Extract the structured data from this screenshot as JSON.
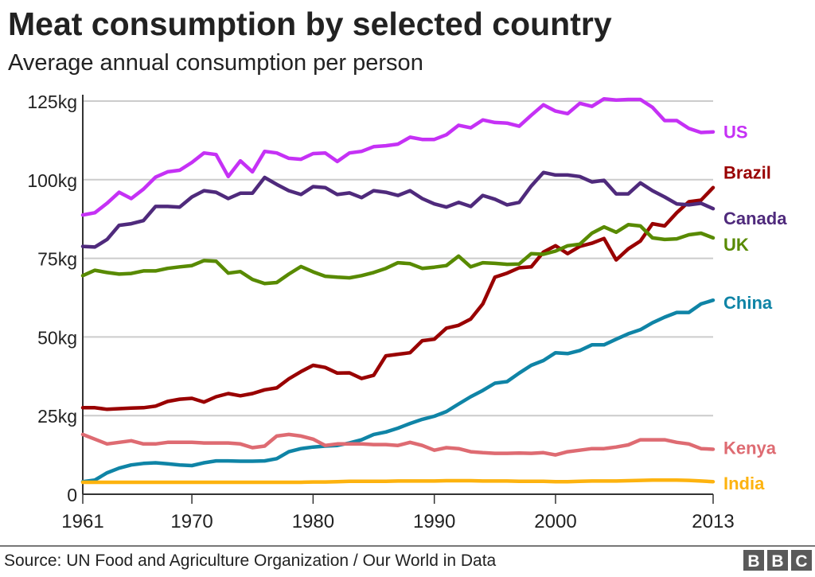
{
  "chart_data": {
    "type": "line",
    "title": "Meat consumption by selected country",
    "subtitle": "Average annual consumption per person",
    "source": "Source: UN Food and Agriculture Organization / Our World in Data",
    "logo": "BBC",
    "xlim": [
      1961,
      2013
    ],
    "ylim": [
      0,
      125
    ],
    "x_ticks": [
      "1961",
      "1970",
      "1980",
      "1990",
      "2000",
      "2013"
    ],
    "y_ticks": [
      {
        "value": 0,
        "label": "0"
      },
      {
        "value": 25,
        "label": "25kg"
      },
      {
        "value": 50,
        "label": "50kg"
      },
      {
        "value": 75,
        "label": "75kg"
      },
      {
        "value": 100,
        "label": "100kg"
      },
      {
        "value": 125,
        "label": "125kg"
      }
    ],
    "grid": true,
    "legend": "inline-right",
    "x_start": 1961,
    "series": [
      {
        "name": "US",
        "color": "#c531f5",
        "values": [
          88.8,
          89.5,
          92.5,
          96,
          94,
          97,
          100.8,
          102.5,
          103,
          105.5,
          108.5,
          108,
          101,
          106,
          102.5,
          109,
          108.5,
          106.8,
          106.5,
          108.3,
          108.5,
          105.8,
          108.5,
          109,
          110.5,
          110.8,
          111.3,
          113.5,
          112.8,
          112.8,
          114.3,
          117.3,
          116.5,
          119,
          118.2,
          118,
          117,
          120.5,
          123.8,
          121.8,
          121,
          124.3,
          123.3,
          125.7,
          125.3,
          125.5,
          125.5,
          123,
          118.8,
          118.8,
          116.3,
          115,
          115.2
        ]
      },
      {
        "name": "Brazil",
        "color": "#990000",
        "values": [
          27.5,
          27.5,
          27,
          27.2,
          27.4,
          27.5,
          28,
          29.5,
          30.2,
          30.5,
          29.3,
          31,
          32,
          31.3,
          32,
          33.2,
          33.8,
          36.7,
          39,
          41,
          40.3,
          38.5,
          38.6,
          36.8,
          37.8,
          44,
          44.5,
          45,
          48.8,
          49.3,
          52.8,
          53.7,
          55.7,
          60.5,
          69,
          70.3,
          72,
          72.3,
          77,
          79,
          76.5,
          78.8,
          79.8,
          81.3,
          74.5,
          78,
          80.5,
          86,
          85.3,
          89.5,
          93,
          93.5,
          97.5
        ]
      },
      {
        "name": "Canada",
        "color": "#4f2a7c",
        "values": [
          78.8,
          78.6,
          81,
          85.5,
          86,
          87,
          91.5,
          91.5,
          91.3,
          94.5,
          96.5,
          96,
          94,
          95.7,
          95.7,
          100.7,
          98.5,
          96.5,
          95.3,
          97.8,
          97.5,
          95.3,
          95.8,
          94.3,
          96.5,
          96,
          95,
          96.5,
          94,
          92.3,
          91.3,
          92.8,
          91.5,
          95,
          93.8,
          92,
          92.8,
          98,
          102.3,
          101.5,
          101.5,
          101,
          99.3,
          99.8,
          95.5,
          95.5,
          99,
          96.5,
          94.5,
          92.3,
          92,
          92.5,
          90.8
        ]
      },
      {
        "name": "UK",
        "color": "#588a00",
        "values": [
          69.5,
          71.2,
          70.5,
          70,
          70.2,
          71,
          71,
          71.8,
          72.3,
          72.7,
          74.3,
          74.1,
          70.3,
          70.8,
          68.3,
          67,
          67.3,
          70,
          72.4,
          70.7,
          69.3,
          69,
          68.8,
          69.5,
          70.5,
          71.8,
          73.6,
          73.3,
          71.8,
          72.2,
          72.7,
          75.7,
          72.3,
          73.6,
          73.4,
          73.1,
          73.2,
          76.5,
          76.3,
          77.3,
          79,
          79.5,
          83,
          85,
          83.3,
          85.7,
          85.3,
          81.5,
          81,
          81.2,
          82.5,
          83,
          81.5
        ]
      },
      {
        "name": "China",
        "color": "#0f84a6",
        "values": [
          4,
          4.5,
          6.8,
          8.3,
          9.3,
          9.8,
          10,
          9.7,
          9.3,
          9.1,
          10,
          10.6,
          10.6,
          10.5,
          10.5,
          10.6,
          11.3,
          13.5,
          14.5,
          15,
          15.3,
          15.5,
          16.3,
          17.3,
          19,
          19.8,
          21,
          22.5,
          23.8,
          24.8,
          26.3,
          28.7,
          31,
          33,
          35.3,
          35.8,
          38.5,
          41,
          42.5,
          45,
          44.7,
          45.7,
          47.5,
          47.5,
          49.3,
          51,
          52.3,
          54.5,
          56.3,
          57.8,
          57.8,
          60.5,
          61.7
        ]
      },
      {
        "name": "Kenya",
        "color": "#de6b72",
        "values": [
          19,
          17.5,
          16,
          16.5,
          17,
          16,
          16,
          16.5,
          16.5,
          16.5,
          16.3,
          16.3,
          16.3,
          16,
          14.8,
          15.3,
          18.5,
          19,
          18.5,
          17.5,
          15.5,
          16,
          16,
          16,
          15.8,
          15.8,
          15.5,
          16.5,
          15.5,
          14,
          14.8,
          14.5,
          13.5,
          13.2,
          13,
          13,
          13.1,
          13,
          13.2,
          12.5,
          13.5,
          14,
          14.5,
          14.5,
          15,
          15.7,
          17.3,
          17.3,
          17.3,
          16.5,
          16,
          14.5,
          14.3
        ]
      },
      {
        "name": "India",
        "color": "#fdb30f",
        "values": [
          3.8,
          3.8,
          3.8,
          3.8,
          3.8,
          3.8,
          3.8,
          3.8,
          3.8,
          3.8,
          3.8,
          3.8,
          3.8,
          3.8,
          3.8,
          3.8,
          3.8,
          3.8,
          3.8,
          3.9,
          3.9,
          4.0,
          4.1,
          4.1,
          4.1,
          4.1,
          4.2,
          4.2,
          4.2,
          4.2,
          4.3,
          4.3,
          4.3,
          4.2,
          4.2,
          4.2,
          4.1,
          4.1,
          4.1,
          4.0,
          4.0,
          4.1,
          4.2,
          4.2,
          4.2,
          4.3,
          4.4,
          4.5,
          4.5,
          4.5,
          4.4,
          4.2,
          4.0
        ]
      }
    ]
  }
}
